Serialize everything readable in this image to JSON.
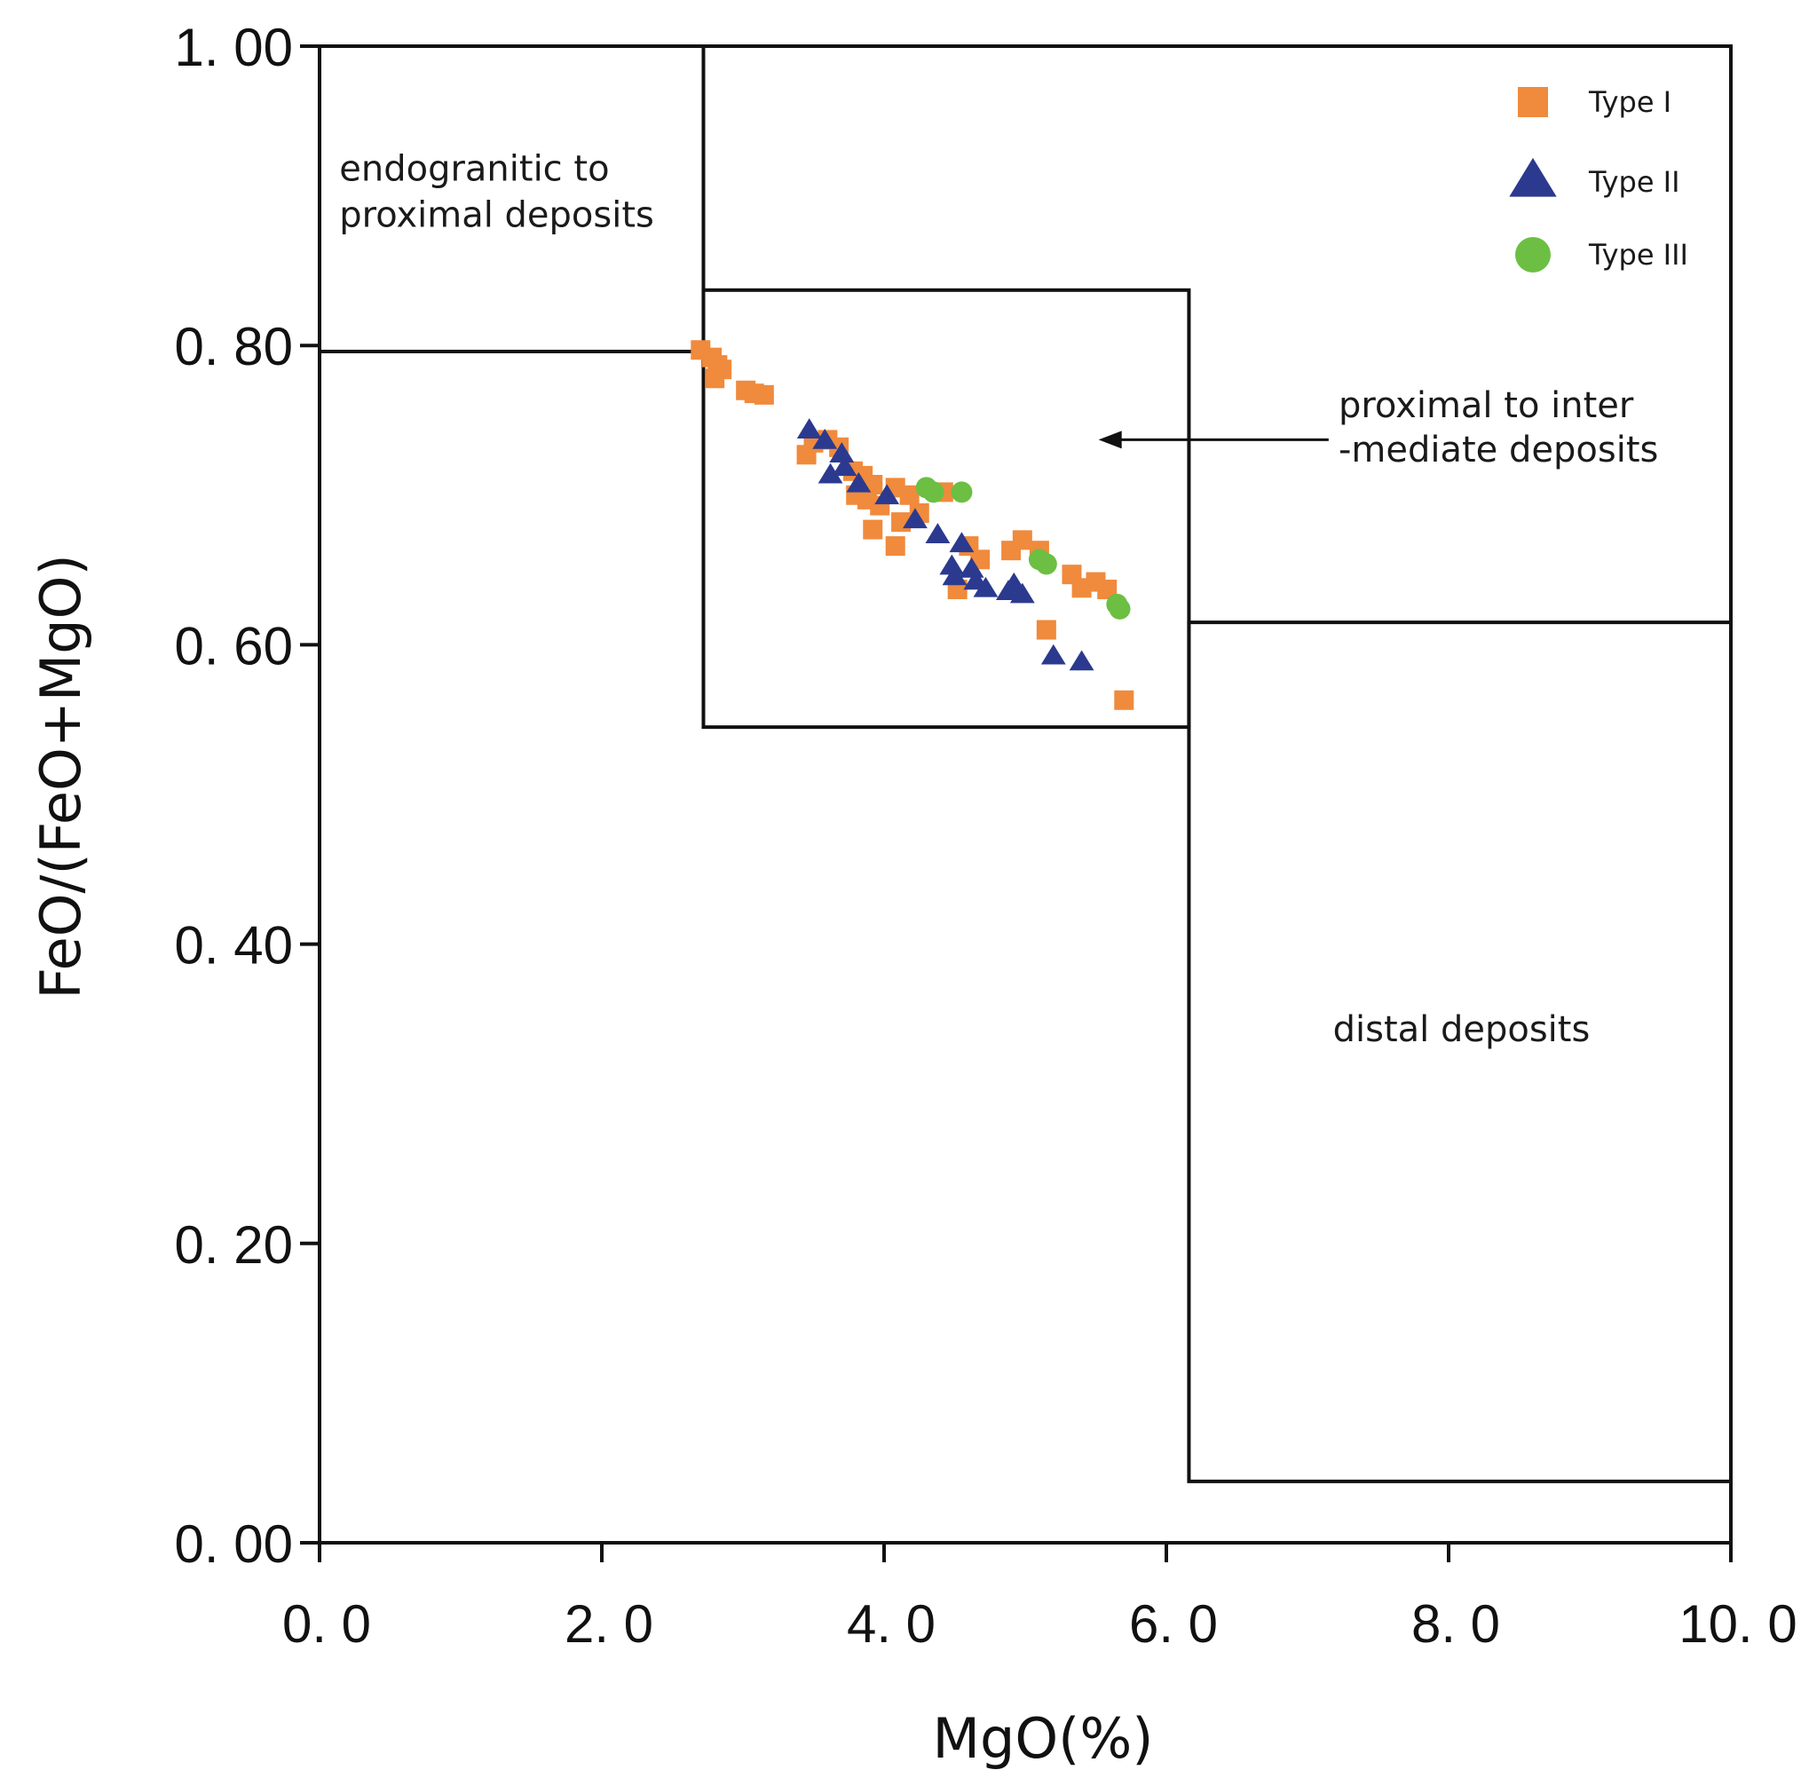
{
  "chart_data": {
    "type": "scatter",
    "title": "",
    "xlabel": "MgO(%)",
    "ylabel": "FeO/(FeO+MgO)",
    "xlim": [
      0,
      10
    ],
    "ylim": [
      0,
      1
    ],
    "x_ticks": [
      "0. 0",
      "2. 0",
      "4. 0",
      "6. 0",
      "8. 0",
      "10. 0"
    ],
    "y_ticks": [
      "0. 00",
      "0. 20",
      "0. 40",
      "0. 60",
      "0. 80",
      "1. 00"
    ],
    "grid": false,
    "legend_position": "top-right",
    "regions": [
      {
        "name": "endogranitic to proximal deposits",
        "label_lines": [
          "endogranitic to",
          "proximal deposits"
        ],
        "x_range": [
          0,
          2.72
        ],
        "y_range": [
          0.796,
          1.0
        ]
      },
      {
        "name": "proximal to intermediate deposits",
        "label_lines": [
          "proximal to inter",
          "-mediate deposits"
        ],
        "x_range": [
          2.72,
          6.16
        ],
        "y_range": [
          0.545,
          0.837
        ]
      },
      {
        "name": "distal deposits",
        "label_lines": [
          "distal deposits"
        ],
        "x_range": [
          6.16,
          10.0
        ],
        "y_range": [
          0.041,
          0.615
        ]
      }
    ],
    "series": [
      {
        "name": "Type I",
        "marker": "square",
        "color": "#f08a3c",
        "points": [
          [
            2.7,
            0.797
          ],
          [
            2.78,
            0.792
          ],
          [
            2.82,
            0.787
          ],
          [
            2.85,
            0.784
          ],
          [
            2.8,
            0.778
          ],
          [
            3.02,
            0.77
          ],
          [
            3.08,
            0.768
          ],
          [
            3.15,
            0.767
          ],
          [
            3.45,
            0.727
          ],
          [
            3.5,
            0.735
          ],
          [
            3.6,
            0.737
          ],
          [
            3.68,
            0.732
          ],
          [
            3.78,
            0.716
          ],
          [
            3.85,
            0.713
          ],
          [
            3.92,
            0.707
          ],
          [
            3.8,
            0.7
          ],
          [
            3.88,
            0.697
          ],
          [
            3.97,
            0.693
          ],
          [
            4.08,
            0.705
          ],
          [
            4.18,
            0.7
          ],
          [
            4.25,
            0.688
          ],
          [
            4.12,
            0.682
          ],
          [
            3.92,
            0.677
          ],
          [
            4.08,
            0.666
          ],
          [
            4.42,
            0.702
          ],
          [
            4.6,
            0.666
          ],
          [
            4.68,
            0.657
          ],
          [
            4.52,
            0.637
          ],
          [
            4.9,
            0.663
          ],
          [
            4.98,
            0.67
          ],
          [
            5.1,
            0.663
          ],
          [
            5.15,
            0.61
          ],
          [
            5.33,
            0.647
          ],
          [
            5.4,
            0.638
          ],
          [
            5.5,
            0.642
          ],
          [
            5.58,
            0.637
          ],
          [
            5.7,
            0.563
          ]
        ]
      },
      {
        "name": "Type II",
        "marker": "triangle",
        "color": "#2b3a8f",
        "points": [
          [
            3.47,
            0.743
          ],
          [
            3.58,
            0.736
          ],
          [
            3.7,
            0.727
          ],
          [
            3.72,
            0.718
          ],
          [
            3.62,
            0.713
          ],
          [
            3.82,
            0.707
          ],
          [
            4.02,
            0.699
          ],
          [
            4.22,
            0.683
          ],
          [
            4.38,
            0.673
          ],
          [
            4.55,
            0.667
          ],
          [
            4.48,
            0.652
          ],
          [
            4.62,
            0.65
          ],
          [
            4.5,
            0.645
          ],
          [
            4.65,
            0.642
          ],
          [
            4.72,
            0.637
          ],
          [
            4.88,
            0.635
          ],
          [
            4.92,
            0.64
          ],
          [
            4.98,
            0.633
          ],
          [
            5.2,
            0.592
          ],
          [
            5.4,
            0.588
          ]
        ]
      },
      {
        "name": "Type III",
        "marker": "circle",
        "color": "#6cbf42",
        "points": [
          [
            4.3,
            0.705
          ],
          [
            4.35,
            0.702
          ],
          [
            4.55,
            0.702
          ],
          [
            5.1,
            0.657
          ],
          [
            5.15,
            0.654
          ],
          [
            5.65,
            0.627
          ],
          [
            5.67,
            0.624
          ]
        ]
      }
    ]
  }
}
